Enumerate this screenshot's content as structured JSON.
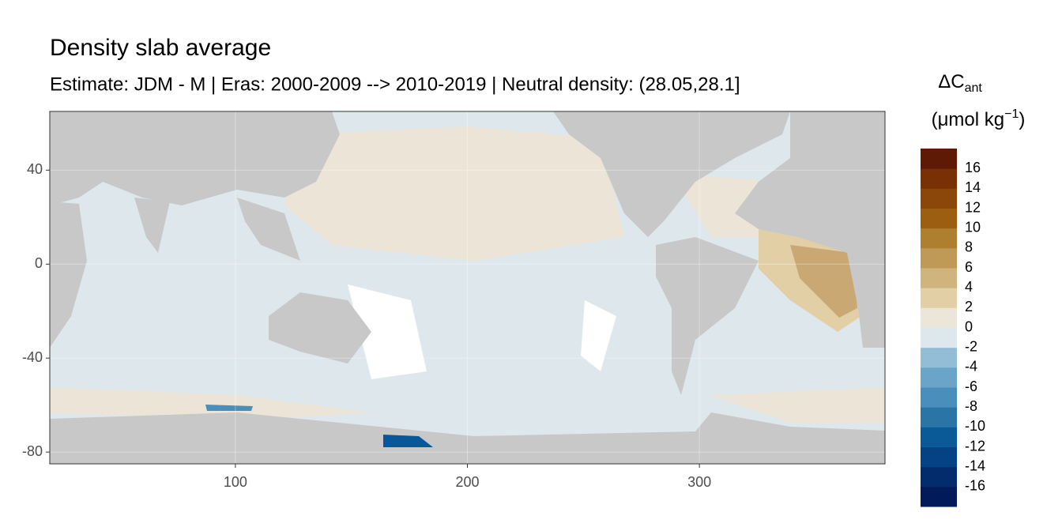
{
  "chart_data": {
    "type": "map",
    "title": "Density slab average",
    "subtitle": "Estimate: JDM - M | Eras: 2000-2009 --> 2010-2019 | Neutral density: (28.05,28.1]",
    "xlim": [
      20,
      380
    ],
    "ylim": [
      -85,
      65
    ],
    "xticks": [
      100,
      200,
      300
    ],
    "yticks": [
      -80,
      -40,
      0,
      40
    ],
    "grid": true,
    "legend": {
      "title": "ΔC",
      "title_subscript": "ant",
      "unit": "(μmol kg",
      "unit_superscript": "−1",
      "unit_end": ")",
      "limits": [
        -18,
        18
      ],
      "ticks": [
        -16,
        -14,
        -12,
        -10,
        -8,
        -6,
        -4,
        -2,
        0,
        2,
        4,
        6,
        8,
        10,
        12,
        14,
        16
      ],
      "colors": [
        "#011a5a",
        "#022c6b",
        "#054283",
        "#0b5a98",
        "#2a74a6",
        "#4a8fbb",
        "#6aa4c9",
        "#93bcd6",
        "#dde8ee",
        "#ece5d9",
        "#e2cfa6",
        "#d0b47e",
        "#bf9a57",
        "#ae7f2f",
        "#9c5f12",
        "#8b470a",
        "#793005",
        "#5f1a06"
      ]
    }
  }
}
